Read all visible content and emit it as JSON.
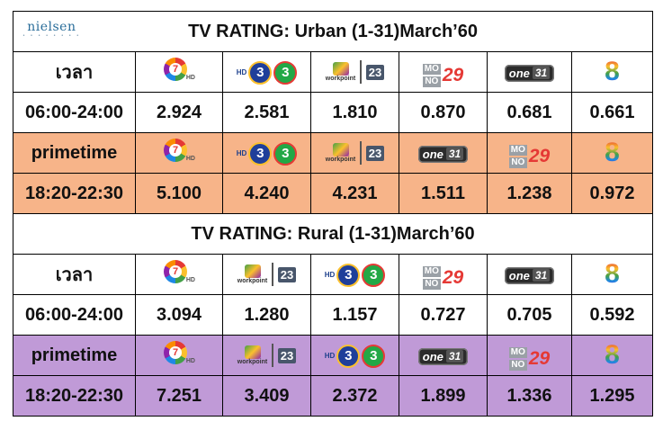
{
  "brand": {
    "name": "nielsen",
    "tagline": "• • • • • • • •"
  },
  "logos": {
    "ch7": {
      "label": "7",
      "sub": "HD"
    },
    "ch3": {
      "hd": "HD",
      "a": "3",
      "b": "3"
    },
    "workpoint": {
      "word": "workpoint",
      "num": "23"
    },
    "mono": {
      "top": "MO",
      "bottom": "NO",
      "num": "29"
    },
    "one": {
      "word": "one",
      "num": "31"
    },
    "ch8": {
      "label": "8"
    }
  },
  "sections": [
    {
      "title": "TV RATING: Urban (1-31)March’60",
      "header_label": "เวลา",
      "header_logos": [
        "ch7",
        "ch3",
        "workpoint",
        "mono",
        "one",
        "ch8"
      ],
      "all_day": {
        "label": "06:00-24:00",
        "values": [
          "2.924",
          "2.581",
          "1.810",
          "0.870",
          "0.681",
          "0.661"
        ]
      },
      "prime_label": "primetime",
      "prime_logos": [
        "ch7",
        "ch3",
        "workpoint",
        "one",
        "mono",
        "ch8"
      ],
      "prime": {
        "label": "18:20-22:30",
        "values": [
          "5.100",
          "4.240",
          "4.231",
          "1.511",
          "1.238",
          "0.972"
        ]
      },
      "band_color": "#f7b489"
    },
    {
      "title": "TV RATING: Rural (1-31)March’60",
      "header_label": "เวลา",
      "header_logos": [
        "ch7",
        "workpoint",
        "ch3",
        "mono",
        "one",
        "ch8"
      ],
      "all_day": {
        "label": "06:00-24:00",
        "values": [
          "3.094",
          "1.280",
          "1.157",
          "0.727",
          "0.705",
          "0.592"
        ]
      },
      "prime_label": "primetime",
      "prime_logos": [
        "ch7",
        "workpoint",
        "ch3",
        "one",
        "mono",
        "ch8"
      ],
      "prime": {
        "label": "18:20-22:30",
        "values": [
          "7.251",
          "3.409",
          "2.372",
          "1.899",
          "1.336",
          "1.295"
        ]
      },
      "band_color": "#c09ad7"
    }
  ]
}
